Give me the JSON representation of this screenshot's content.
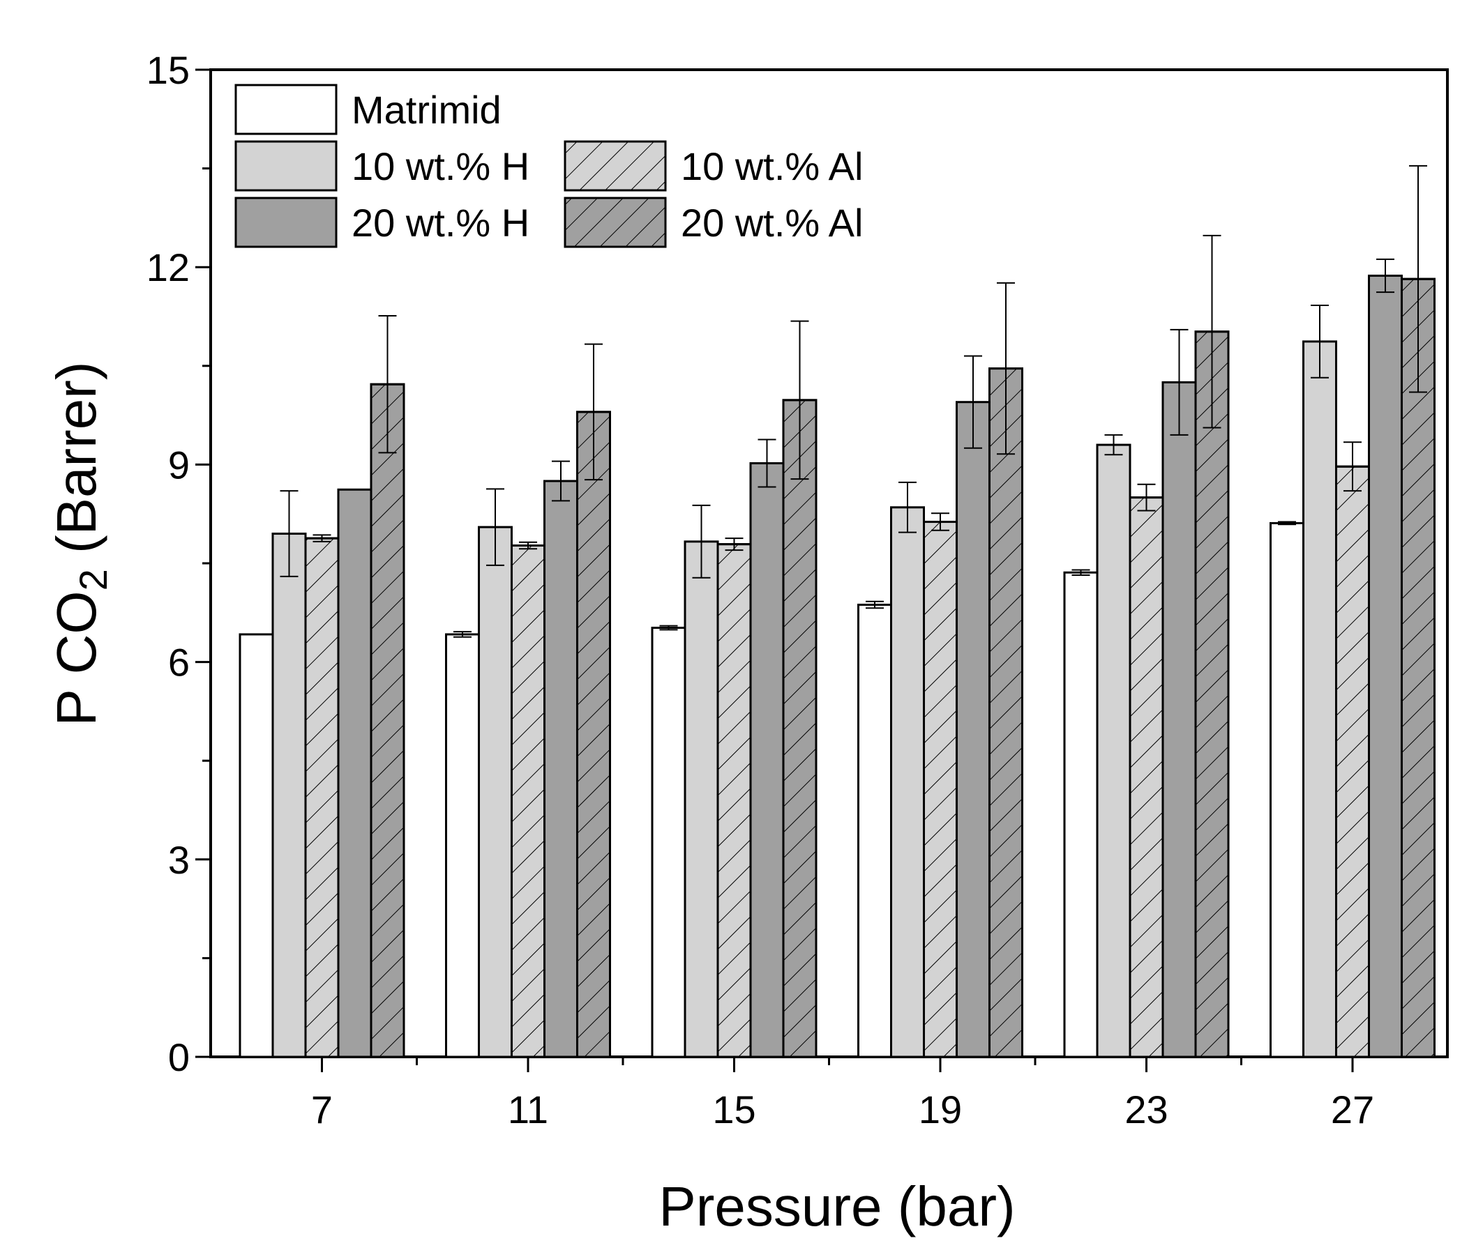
{
  "chart_data": {
    "type": "bar",
    "title": "",
    "xlabel": "Pressure (bar)",
    "ylabel_parts": {
      "prefix": "P CO",
      "subscript": "2",
      "suffix": " (Barrer)"
    },
    "ylim": [
      0,
      15
    ],
    "yticks": [
      0,
      3,
      6,
      9,
      12,
      15
    ],
    "ytick_labels": [
      "0",
      "3",
      "6",
      "9",
      "12",
      "15"
    ],
    "categories": [
      "7",
      "11",
      "15",
      "19",
      "23",
      "27"
    ],
    "legend_position": "top-left",
    "series": [
      {
        "name": "Matrimid",
        "fill": "#ffffff",
        "hatch": false,
        "values": [
          6.42,
          6.42,
          6.52,
          6.87,
          7.36,
          8.11
        ],
        "errors": [
          0.0,
          0.04,
          0.03,
          0.05,
          0.04,
          0.02
        ]
      },
      {
        "name": "10 wt.% H",
        "fill": "#d3d3d3",
        "hatch": false,
        "values": [
          7.95,
          8.05,
          7.83,
          8.35,
          9.3,
          10.87
        ],
        "errors": [
          0.65,
          0.58,
          0.55,
          0.38,
          0.15,
          0.55
        ]
      },
      {
        "name": "10 wt.% Al",
        "fill": "#d3d3d3",
        "hatch": true,
        "values": [
          7.88,
          7.77,
          7.79,
          8.13,
          8.5,
          8.97
        ],
        "errors": [
          0.05,
          0.05,
          0.09,
          0.13,
          0.2,
          0.37
        ]
      },
      {
        "name": "20 wt.% H",
        "fill": "#a0a0a0",
        "hatch": false,
        "values": [
          8.62,
          8.75,
          9.02,
          9.95,
          10.25,
          11.87
        ],
        "errors": [
          0.0,
          0.3,
          0.36,
          0.7,
          0.8,
          0.25
        ]
      },
      {
        "name": "20 wt.% Al",
        "fill": "#a0a0a0",
        "hatch": true,
        "values": [
          10.22,
          9.8,
          9.98,
          10.46,
          11.02,
          11.82
        ],
        "errors": [
          1.04,
          1.03,
          1.2,
          1.3,
          1.46,
          1.72
        ]
      }
    ]
  }
}
